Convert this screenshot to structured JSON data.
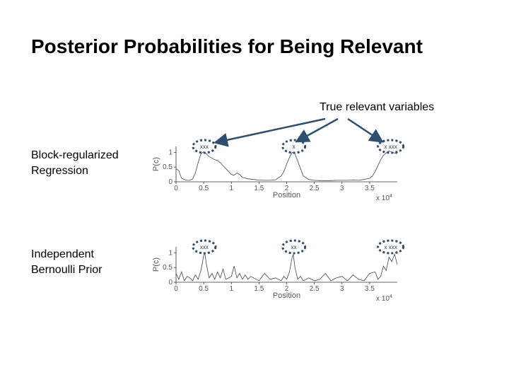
{
  "slide": {
    "title": "Posterior Probabilities for Being Relevant",
    "callout": "True relevant variables",
    "row_labels": [
      [
        "Block-regularized",
        "Regression"
      ],
      [
        "Independent",
        "Bernoulli Prior"
      ]
    ]
  },
  "colors": {
    "marker": "#2f4f6f",
    "curve": "#444444",
    "axis": "#333333"
  },
  "chart_data": [
    {
      "type": "line",
      "name": "Block-regularized Regression",
      "xlabel": "Position",
      "ylabel": "P(c)",
      "x_multiplier": "x 10",
      "x_exponent": "4",
      "xlim": [
        0,
        4
      ],
      "ylim": [
        0,
        1.2
      ],
      "xticks": [
        0,
        0.5,
        1,
        1.5,
        2,
        2.5,
        3,
        3.5
      ],
      "xtick_labels": [
        "0",
        "0.5",
        "1",
        "1.5",
        "2",
        "2.5",
        "3",
        "3.5"
      ],
      "yticks": [
        0,
        0.5,
        1
      ],
      "ytick_labels": [
        "0",
        "0.5",
        "1"
      ],
      "true_markers": [
        {
          "x": 0.51,
          "text": "xxx"
        },
        {
          "x": 2.13,
          "text": "x"
        },
        {
          "x": 3.88,
          "text": "x xxx"
        }
      ],
      "x": [
        0,
        0.05,
        0.1,
        0.15,
        0.2,
        0.25,
        0.3,
        0.35,
        0.4,
        0.45,
        0.5,
        0.55,
        0.6,
        0.65,
        0.7,
        0.75,
        0.8,
        0.85,
        0.9,
        0.95,
        1.0,
        1.05,
        1.1,
        1.15,
        1.2,
        1.3,
        1.4,
        1.5,
        1.6,
        1.7,
        1.8,
        1.9,
        1.95,
        2.0,
        2.05,
        2.1,
        2.15,
        2.2,
        2.25,
        2.3,
        2.4,
        2.5,
        2.6,
        2.7,
        2.8,
        2.9,
        3.0,
        3.1,
        3.2,
        3.3,
        3.4,
        3.5,
        3.55,
        3.6,
        3.65,
        3.7,
        3.75,
        3.8,
        3.85,
        3.9,
        3.95,
        4.0
      ],
      "y": [
        0.45,
        0.38,
        0.12,
        0.08,
        0.05,
        0.05,
        0.1,
        0.3,
        0.65,
        0.95,
        1.02,
        0.95,
        0.85,
        0.8,
        0.75,
        0.72,
        0.65,
        0.55,
        0.45,
        0.35,
        0.25,
        0.22,
        0.3,
        0.25,
        0.15,
        0.1,
        0.08,
        0.06,
        0.05,
        0.05,
        0.07,
        0.2,
        0.35,
        0.6,
        0.82,
        1.0,
        0.95,
        0.7,
        0.45,
        0.2,
        0.08,
        0.05,
        0.04,
        0.04,
        0.04,
        0.05,
        0.05,
        0.05,
        0.06,
        0.05,
        0.08,
        0.12,
        0.2,
        0.35,
        0.55,
        0.75,
        0.9,
        0.98,
        1.05,
        1.0,
        0.98,
        0.95
      ]
    },
    {
      "type": "line",
      "name": "Independent Bernoulli Prior",
      "xlabel": "Position",
      "ylabel": "P(c)",
      "x_multiplier": "x 10",
      "x_exponent": "4",
      "xlim": [
        0,
        4
      ],
      "ylim": [
        0,
        1.2
      ],
      "xticks": [
        0,
        0.5,
        1,
        1.5,
        2,
        2.5,
        3,
        3.5
      ],
      "xtick_labels": [
        "0",
        "0.5",
        "1",
        "1.5",
        "2",
        "2.5",
        "3",
        "3.5"
      ],
      "yticks": [
        0,
        0.5,
        1
      ],
      "ytick_labels": [
        "0",
        "0.5",
        "1"
      ],
      "true_markers": [
        {
          "x": 0.51,
          "text": "xxx"
        },
        {
          "x": 2.13,
          "text": "xx"
        },
        {
          "x": 3.88,
          "text": "x xxx"
        }
      ],
      "x": [
        0,
        0.05,
        0.1,
        0.15,
        0.2,
        0.25,
        0.3,
        0.35,
        0.4,
        0.45,
        0.5,
        0.52,
        0.55,
        0.6,
        0.65,
        0.7,
        0.75,
        0.8,
        0.85,
        0.9,
        1.0,
        1.05,
        1.1,
        1.15,
        1.2,
        1.25,
        1.3,
        1.35,
        1.4,
        1.5,
        1.6,
        1.7,
        1.8,
        1.9,
        1.95,
        2.0,
        2.05,
        2.1,
        2.12,
        2.15,
        2.2,
        2.25,
        2.3,
        2.4,
        2.5,
        2.6,
        2.7,
        2.8,
        2.9,
        3.0,
        3.1,
        3.2,
        3.3,
        3.4,
        3.5,
        3.6,
        3.65,
        3.7,
        3.75,
        3.8,
        3.85,
        3.9,
        3.95,
        4.0
      ],
      "y": [
        0.3,
        0.1,
        0.35,
        0.05,
        0.2,
        0.15,
        0.05,
        0.25,
        0.1,
        0.4,
        0.9,
        1.0,
        0.6,
        0.15,
        0.3,
        0.1,
        0.35,
        0.15,
        0.45,
        0.1,
        0.2,
        0.55,
        0.15,
        0.3,
        0.1,
        0.25,
        0.1,
        0.2,
        0.15,
        0.05,
        0.3,
        0.1,
        0.15,
        0.05,
        0.2,
        0.1,
        0.35,
        0.85,
        0.95,
        0.5,
        0.1,
        0.2,
        0.05,
        0.15,
        0.05,
        0.1,
        0.3,
        0.05,
        0.15,
        0.2,
        0.05,
        0.25,
        0.1,
        0.05,
        0.3,
        0.35,
        0.1,
        0.2,
        0.55,
        0.4,
        0.85,
        0.7,
        0.95,
        0.6
      ]
    }
  ]
}
